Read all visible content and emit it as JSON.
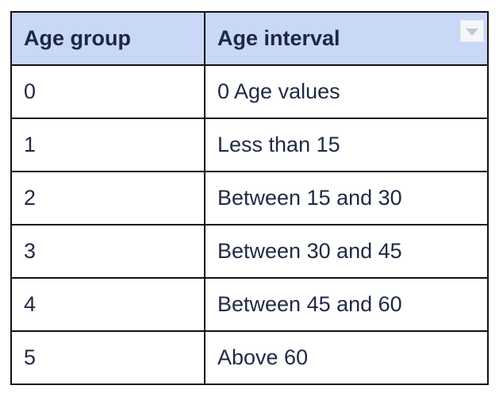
{
  "table": {
    "headers": [
      "Age group",
      "Age interval"
    ],
    "rows": [
      [
        "0",
        "0 Age values"
      ],
      [
        "1",
        "Less than 15"
      ],
      [
        "2",
        "Between 15 and 30"
      ],
      [
        "3",
        "Between 30 and 45"
      ],
      [
        "4",
        "Between 45 and 60"
      ],
      [
        "5",
        "Above 60"
      ]
    ],
    "header_bg": "#c9d8f7",
    "border_color": "#111111",
    "dropdown_icon": "chevron-down-icon"
  }
}
